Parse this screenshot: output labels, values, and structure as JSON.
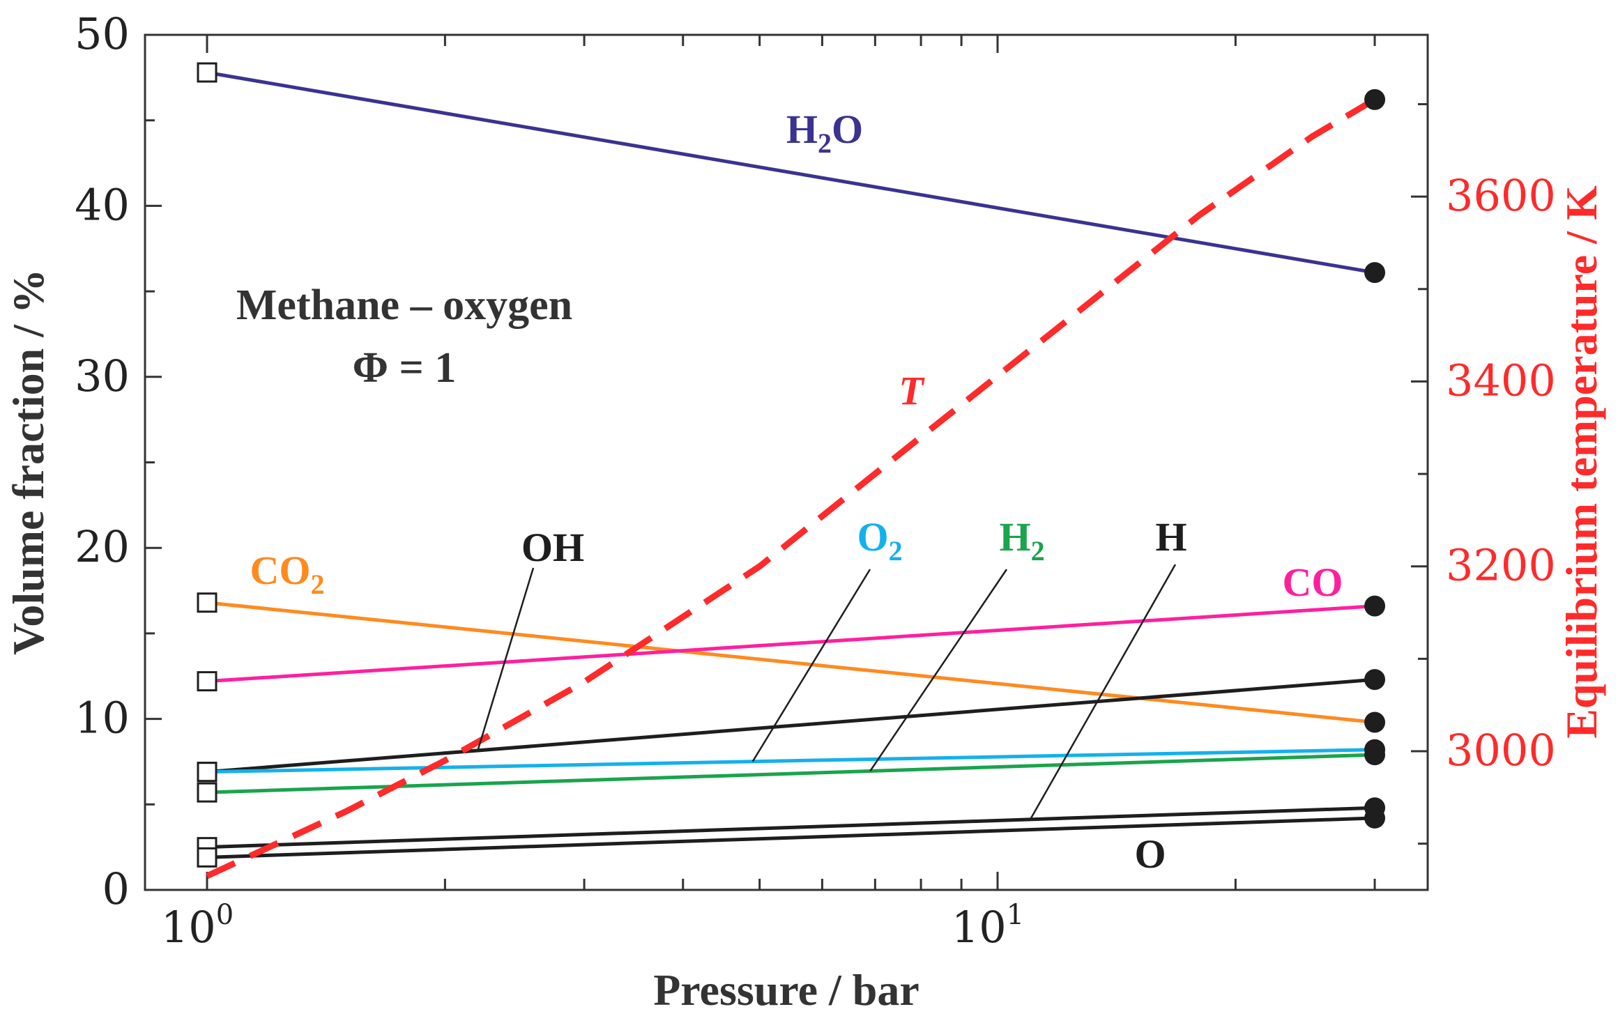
{
  "chart_data": {
    "type": "line",
    "x_scale": "log",
    "xlabel": "Pressure / bar",
    "ylabel": "Volume fraction / %",
    "y2label": "Equilibrium temperature / K",
    "xlim": [
      0.8,
      35
    ],
    "ylim": [
      0,
      50
    ],
    "y2lim": [
      2850,
      3775
    ],
    "x_ticks": [
      {
        "base": "10",
        "exp": "0",
        "value": 1
      },
      {
        "base": "10",
        "exp": "1",
        "value": 10
      }
    ],
    "y_ticks": [
      "0",
      "10",
      "20",
      "30",
      "40",
      "50"
    ],
    "y2_ticks": [
      "3000",
      "3200",
      "3400",
      "3600"
    ],
    "annotation": {
      "line1": "Methane – oxygen",
      "line2": "Φ = 1"
    },
    "x": [
      1,
      30
    ],
    "series": [
      {
        "name": "H2O",
        "label": "H",
        "sub": "2",
        "tail": "O",
        "color": "#3a3391",
        "values": [
          47.8,
          36.1
        ],
        "axis": "left"
      },
      {
        "name": "CO2",
        "label": "CO",
        "sub": "2",
        "tail": "",
        "color": "#ff8a1e",
        "values": [
          16.8,
          9.8
        ],
        "axis": "left"
      },
      {
        "name": "CO",
        "label": "CO",
        "sub": "",
        "tail": "",
        "color": "#ff1f9e",
        "values": [
          12.2,
          16.6
        ],
        "axis": "left"
      },
      {
        "name": "OH",
        "label": "OH",
        "sub": "",
        "tail": "",
        "color": "#1e1e1e",
        "values": [
          6.9,
          12.3
        ],
        "axis": "left"
      },
      {
        "name": "O2",
        "label": "O",
        "sub": "2",
        "tail": "",
        "color": "#13b1ec",
        "values": [
          6.9,
          8.2
        ],
        "axis": "left"
      },
      {
        "name": "H2",
        "label": "H",
        "sub": "2",
        "tail": "",
        "color": "#19a44d",
        "values": [
          5.7,
          7.9
        ],
        "axis": "left"
      },
      {
        "name": "H",
        "label": "H",
        "sub": "",
        "tail": "",
        "color": "#1e1e1e",
        "values": [
          2.5,
          4.8
        ],
        "axis": "left"
      },
      {
        "name": "O",
        "label": "O",
        "sub": "",
        "tail": "",
        "color": "#1e1e1e",
        "values": [
          1.9,
          4.2
        ],
        "axis": "left"
      },
      {
        "name": "T",
        "label": "T",
        "sub": "",
        "tail": "",
        "color": "#ff2a2a",
        "values": [
          2865,
          3705
        ],
        "axis": "right",
        "dashed": true
      }
    ],
    "t_curve_x": [
      1,
      1.5,
      2,
      3,
      5,
      8,
      12,
      18,
      25,
      30
    ],
    "t_curve_y": [
      2865,
      2935,
      2990,
      3075,
      3200,
      3340,
      3460,
      3580,
      3665,
      3705
    ]
  },
  "colors": {
    "axis": "#333333",
    "right_axis": "#ff2a2a",
    "marker": "#1e1e1e"
  }
}
